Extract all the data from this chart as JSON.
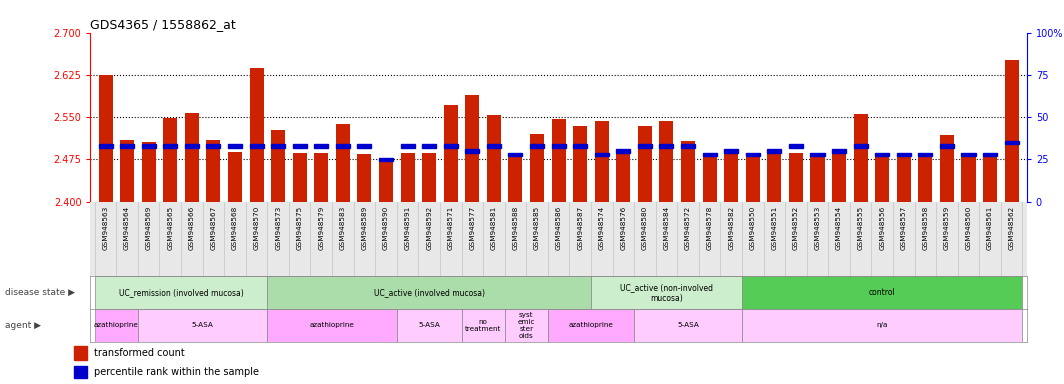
{
  "title": "GDS4365 / 1558862_at",
  "samples": [
    "GSM948563",
    "GSM948564",
    "GSM948569",
    "GSM948565",
    "GSM948566",
    "GSM948567",
    "GSM948568",
    "GSM948570",
    "GSM948573",
    "GSM948575",
    "GSM948579",
    "GSM948583",
    "GSM948589",
    "GSM948590",
    "GSM948591",
    "GSM948592",
    "GSM948571",
    "GSM948577",
    "GSM948581",
    "GSM948588",
    "GSM948585",
    "GSM948586",
    "GSM948587",
    "GSM948574",
    "GSM948576",
    "GSM948580",
    "GSM948584",
    "GSM948572",
    "GSM948578",
    "GSM948582",
    "GSM948550",
    "GSM948551",
    "GSM948552",
    "GSM948553",
    "GSM948554",
    "GSM948555",
    "GSM948556",
    "GSM948557",
    "GSM948558",
    "GSM948559",
    "GSM948560",
    "GSM948561",
    "GSM948562"
  ],
  "transformed_counts": [
    2.625,
    2.51,
    2.505,
    2.548,
    2.557,
    2.51,
    2.488,
    2.638,
    2.527,
    2.487,
    2.487,
    2.537,
    2.485,
    2.47,
    2.487,
    2.487,
    2.572,
    2.59,
    2.553,
    2.487,
    2.52,
    2.547,
    2.535,
    2.543,
    2.487,
    2.535,
    2.543,
    2.508,
    2.487,
    2.487,
    2.487,
    2.487,
    2.487,
    2.487,
    2.487,
    2.555,
    2.487,
    2.487,
    2.487,
    2.519,
    2.487,
    2.487,
    2.651
  ],
  "percentile_ranks": [
    33,
    33,
    33,
    33,
    33,
    33,
    33,
    33,
    33,
    33,
    33,
    33,
    33,
    25,
    33,
    33,
    33,
    30,
    33,
    28,
    33,
    33,
    33,
    28,
    30,
    33,
    33,
    33,
    28,
    30,
    28,
    30,
    33,
    28,
    30,
    33,
    28,
    28,
    28,
    33,
    28,
    28,
    35
  ],
  "ylim_left": [
    2.4,
    2.7
  ],
  "ylim_right": [
    0,
    100
  ],
  "yticks_left": [
    2.4,
    2.475,
    2.55,
    2.625,
    2.7
  ],
  "yticks_right": [
    0,
    25,
    50,
    75,
    100
  ],
  "bar_color": "#cc2200",
  "percentile_color": "#0000cc",
  "dot_lines": [
    2.625,
    2.55,
    2.475
  ],
  "disease_states": [
    {
      "label": "UC_remission (involved mucosa)",
      "start": 0,
      "end": 8,
      "color": "#cceecc"
    },
    {
      "label": "UC_active (involved mucosa)",
      "start": 8,
      "end": 23,
      "color": "#aaddaa"
    },
    {
      "label": "UC_active (non-involved\nmucosa)",
      "start": 23,
      "end": 30,
      "color": "#cceecc"
    },
    {
      "label": "control",
      "start": 30,
      "end": 43,
      "color": "#55cc55"
    }
  ],
  "agents": [
    {
      "label": "azathioprine",
      "start": 0,
      "end": 2,
      "color": "#ffaaff"
    },
    {
      "label": "5-ASA",
      "start": 2,
      "end": 8,
      "color": "#ffccff"
    },
    {
      "label": "azathioprine",
      "start": 8,
      "end": 14,
      "color": "#ffaaff"
    },
    {
      "label": "5-ASA",
      "start": 14,
      "end": 17,
      "color": "#ffccff"
    },
    {
      "label": "no\ntreatment",
      "start": 17,
      "end": 19,
      "color": "#ffccff"
    },
    {
      "label": "syst\nemic\nster\noids",
      "start": 19,
      "end": 21,
      "color": "#ffccff"
    },
    {
      "label": "azathioprine",
      "start": 21,
      "end": 25,
      "color": "#ffaaff"
    },
    {
      "label": "5-ASA",
      "start": 25,
      "end": 30,
      "color": "#ffccff"
    },
    {
      "label": "n/a",
      "start": 30,
      "end": 43,
      "color": "#ffccff"
    }
  ],
  "xtick_bg_color": "#e8e8e8",
  "legend_items": [
    {
      "color": "#cc2200",
      "label": "transformed count"
    },
    {
      "color": "#0000cc",
      "label": "percentile rank within the sample"
    }
  ],
  "left_label_color": "#888888",
  "figsize": [
    10.64,
    3.84
  ],
  "dpi": 100
}
